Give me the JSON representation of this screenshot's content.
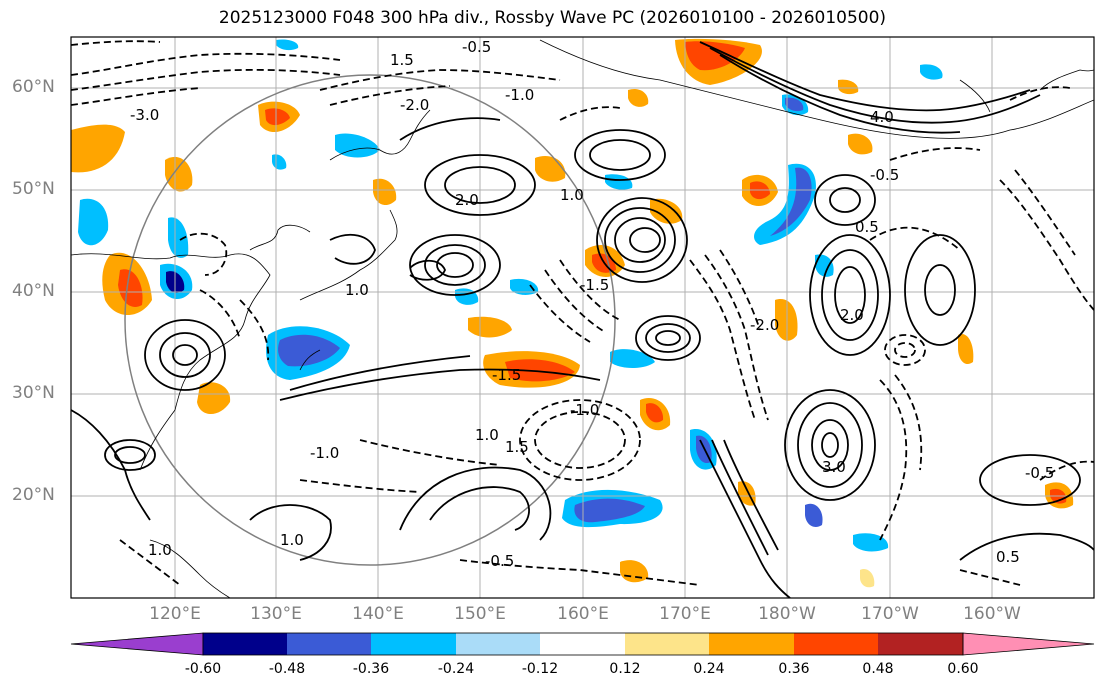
{
  "title": "2025123000 F048 300 hPa div., Rossby Wave PC (2026010100 - 2026010500)",
  "lat_labels": [
    "60°N",
    "50°N",
    "40°N",
    "30°N",
    "20°N"
  ],
  "lon_labels": [
    "120°E",
    "130°E",
    "140°E",
    "150°E",
    "160°E",
    "170°E",
    "180°W",
    "170°W",
    "160°W"
  ],
  "colorbar": {
    "labels": [
      "-0.60",
      "-0.48",
      "-0.36",
      "-0.24",
      "-0.12",
      "0.12",
      "0.24",
      "0.36",
      "0.48",
      "0.60"
    ],
    "colors": [
      "#9a3ecf",
      "#00008b",
      "#3b5bd6",
      "#00bfff",
      "#aadcf8",
      "#ffffff",
      "#fde48a",
      "#ffa500",
      "#ff4500",
      "#b22222",
      "#ff8fb4"
    ]
  },
  "contour_labels": [
    {
      "text": "-0.5"
    },
    {
      "text": "-1.0"
    },
    {
      "text": "1.5"
    },
    {
      "text": "-2.0"
    },
    {
      "text": "-3.0"
    },
    {
      "text": "1.0"
    },
    {
      "text": "2.0"
    },
    {
      "text": "-1.5"
    },
    {
      "text": "4.0"
    },
    {
      "text": "-0.5"
    },
    {
      "text": "0.5"
    },
    {
      "text": "3.0"
    },
    {
      "text": "1.0"
    },
    {
      "text": "-1.0"
    },
    {
      "text": "2.0"
    },
    {
      "text": "-2.0"
    },
    {
      "text": "1.0"
    },
    {
      "text": "-0.5"
    },
    {
      "text": "1.5"
    },
    {
      "text": "0.5"
    },
    {
      "text": "-1.5"
    },
    {
      "text": "1.0"
    },
    {
      "text": "-0.5"
    },
    {
      "text": "1.0"
    },
    {
      "text": "-1.0"
    }
  ]
}
